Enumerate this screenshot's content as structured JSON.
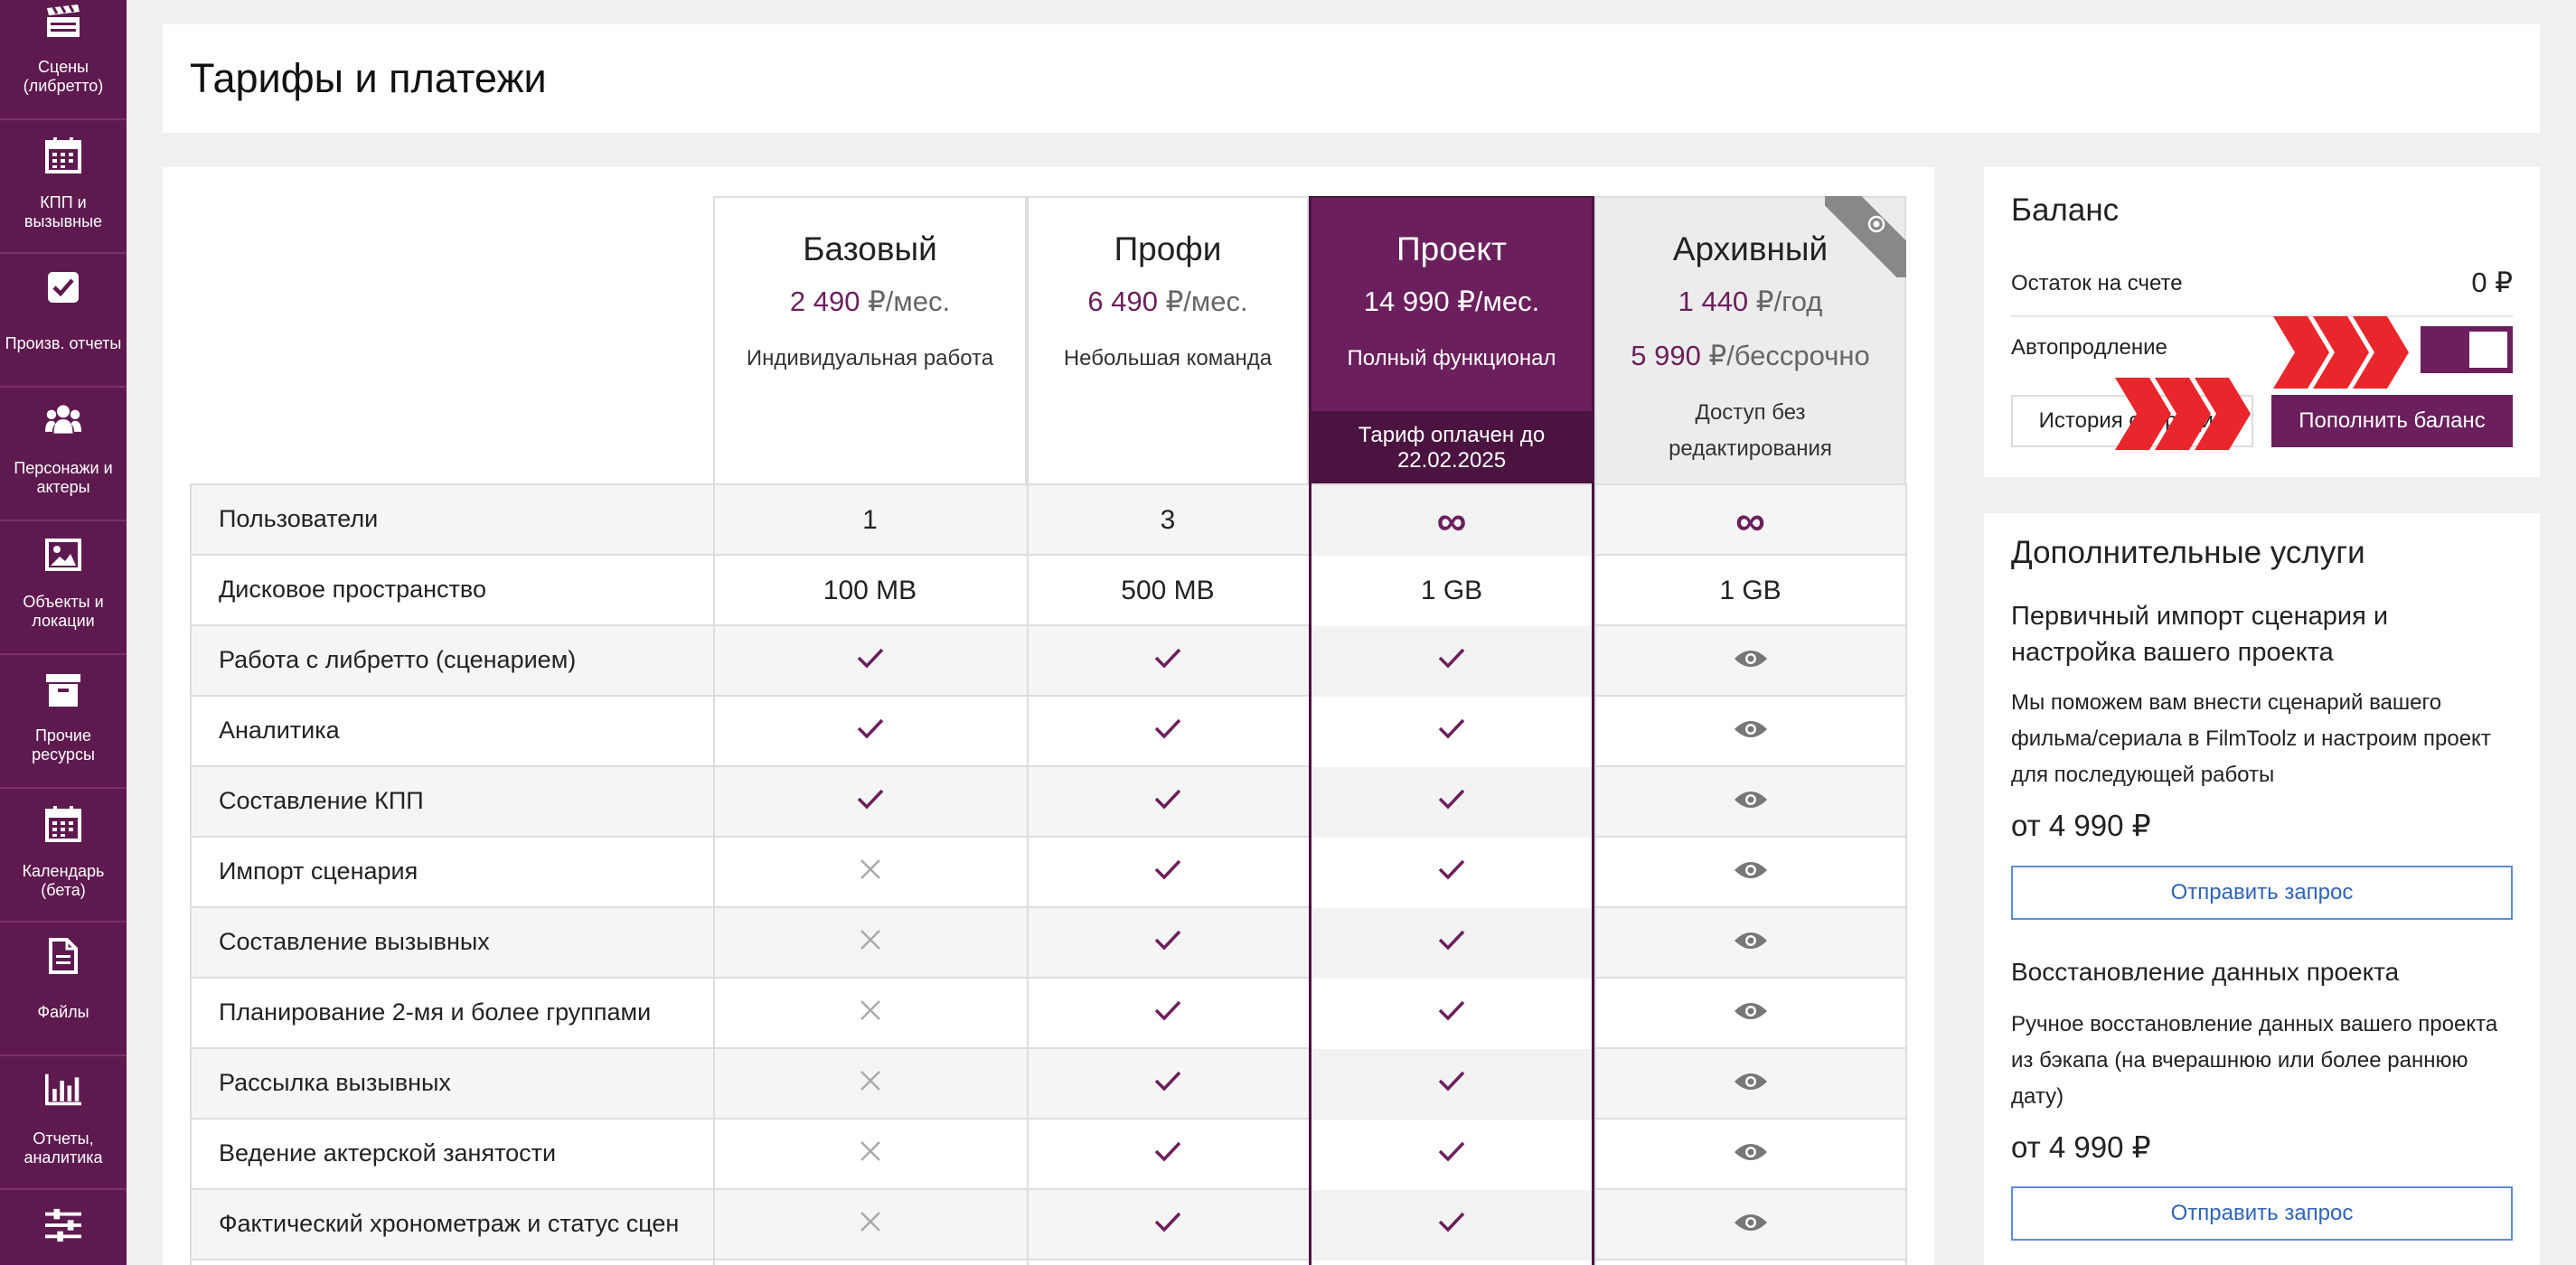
{
  "sidebar": {
    "items": [
      {
        "label": "Сцены (либретто)",
        "icon": "clapperboard-icon"
      },
      {
        "label": "КПП и вызывные",
        "icon": "calendar-icon"
      },
      {
        "label": "Произв. отчеты",
        "icon": "checkbox-icon"
      },
      {
        "label": "Персонажи и актеры",
        "icon": "users-icon"
      },
      {
        "label": "Объекты и локации",
        "icon": "image-icon"
      },
      {
        "label": "Прочие ресурсы",
        "icon": "archive-box-icon"
      },
      {
        "label": "Календарь (бета)",
        "icon": "calendar-icon"
      },
      {
        "label": "Файлы",
        "icon": "file-icon"
      },
      {
        "label": "Отчеты, аналитика",
        "icon": "bar-chart-icon"
      },
      {
        "label": "",
        "icon": "sliders-icon"
      }
    ]
  },
  "page": {
    "title": "Тарифы и платежи"
  },
  "plans": [
    {
      "name": "Базовый",
      "price1_num": "2 490",
      "price1_unit": " ₽/мес.",
      "desc": "Индивидуальная работа"
    },
    {
      "name": "Профи",
      "price1_num": "6 490",
      "price1_unit": " ₽/мес.",
      "desc": "Небольшая команда"
    },
    {
      "name": "Проект",
      "price1_num": "14 990",
      "price1_unit": " ₽/мес.",
      "desc": "Полный функционал",
      "paid_note": "Тариф оплачен до 22.02.2025",
      "active": true
    },
    {
      "name": "Архивный",
      "price1_num": "1 440",
      "price1_unit": " ₽/год",
      "price2_num": "5 990",
      "price2_unit": " ₽/бессрочно",
      "desc": "Доступ без редактирования"
    }
  ],
  "features": [
    {
      "name": "Пользователи",
      "values": [
        "1",
        "3",
        "∞",
        "∞"
      ]
    },
    {
      "name": "Дисковое пространство",
      "values": [
        "100 MB",
        "500 MB",
        "1 GB",
        "1 GB"
      ]
    },
    {
      "name": "Работа с либретто (сценарием)",
      "values": [
        "check",
        "check",
        "check",
        "eye"
      ]
    },
    {
      "name": "Аналитика",
      "values": [
        "check",
        "check",
        "check",
        "eye"
      ]
    },
    {
      "name": "Составление КПП",
      "values": [
        "check",
        "check",
        "check",
        "eye"
      ]
    },
    {
      "name": "Импорт сценария",
      "values": [
        "cross",
        "check",
        "check",
        "eye"
      ]
    },
    {
      "name": "Составление вызывных",
      "values": [
        "cross",
        "check",
        "check",
        "eye"
      ]
    },
    {
      "name": "Планирование 2-мя и более группами",
      "values": [
        "cross",
        "check",
        "check",
        "eye"
      ]
    },
    {
      "name": "Рассылка вызывных",
      "values": [
        "cross",
        "check",
        "check",
        "eye"
      ]
    },
    {
      "name": "Ведение актерской занятости",
      "values": [
        "cross",
        "check",
        "check",
        "eye"
      ]
    },
    {
      "name": "Фактический хронометраж и статус сцен",
      "values": [
        "cross",
        "check",
        "check",
        "eye"
      ]
    }
  ],
  "balance": {
    "title": "Баланс",
    "remaining_label": "Остаток на счете",
    "remaining_value": "0 ₽",
    "autorenew_label": "Автопродление",
    "autorenew_on": true,
    "history_button": "История операций",
    "topup_button": "Пополнить баланс"
  },
  "services": {
    "title": "Дополнительные услуги",
    "items": [
      {
        "name": "Первичный импорт сценария и настройка вашего проекта",
        "desc": "Мы поможем вам внести сценарий вашего фильма/сериала в FilmToolz и настроим проект для последующей работы",
        "price": "от 4 990 ₽",
        "button": "Отправить запрос"
      },
      {
        "name": "Восстановление данных проекта",
        "desc": "Ручное восстановление данных вашего проекта из бэкапа (на вчерашнюю или более раннюю дату)",
        "price": "от 4 990 ₽",
        "button": "Отправить запрос"
      }
    ]
  },
  "colors": {
    "accent": "#6b1f5c",
    "sidebar": "#5e1a4f",
    "highlight_arrow": "#e8262b",
    "link": "#2f64b8"
  }
}
